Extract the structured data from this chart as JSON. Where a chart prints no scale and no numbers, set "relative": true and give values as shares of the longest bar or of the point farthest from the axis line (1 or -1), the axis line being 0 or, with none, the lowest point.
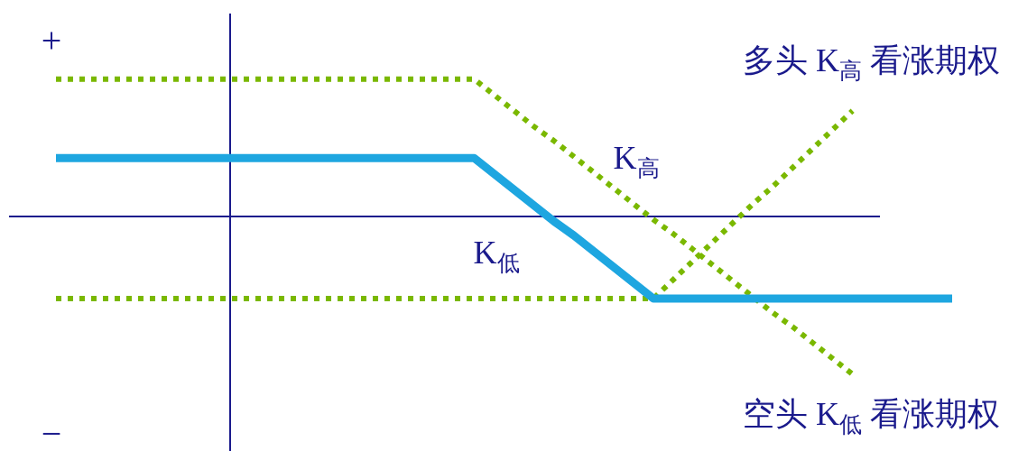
{
  "chart_data": {
    "type": "line",
    "relative": true,
    "categories": [
      null,
      null,
      null,
      null,
      null,
      null,
      null,
      null,
      null,
      null,
      null,
      null,
      null,
      null,
      null,
      null,
      null,
      null,
      null,
      null,
      null,
      null,
      null,
      null,
      null,
      null,
      null,
      null,
      null,
      null,
      null,
      null,
      null,
      null,
      null,
      null,
      null,
      null,
      null,
      null,
      null,
      null,
      null,
      null,
      null,
      null
    ],
    "series": [
      {
        "name": "空头 K$_{低}$ 看涨期权",
        "color": "#7ab800",
        "line_style": "dotted",
        "values": [
          0.87,
          0.87,
          0.87,
          0.87,
          0.87,
          0.87,
          0.87,
          0.87,
          0.87,
          0.87,
          0.87,
          0.87,
          0.87,
          0.87,
          0.87,
          0.87,
          0.87,
          0.87,
          0.87,
          0.87,
          0.87,
          0.87,
          0.77,
          0.67,
          0.57,
          0.48,
          0.38,
          0.28,
          0.18,
          0.08,
          -0.02,
          -0.11,
          -0.21,
          -0.31,
          -0.41,
          -0.51,
          -0.61,
          -0.7,
          -0.8,
          -0.9,
          -1,
          null,
          null,
          null,
          null,
          null
        ]
      },
      {
        "name": "多头 K$_{高}$ 看涨期权",
        "color": "#7ab800",
        "line_style": "dotted",
        "values": [
          -0.52,
          -0.52,
          -0.52,
          -0.52,
          -0.52,
          -0.52,
          -0.52,
          -0.52,
          -0.52,
          -0.52,
          -0.52,
          -0.52,
          -0.52,
          -0.52,
          -0.52,
          -0.52,
          -0.52,
          -0.52,
          -0.52,
          -0.52,
          -0.52,
          -0.52,
          -0.52,
          -0.52,
          -0.52,
          -0.52,
          -0.52,
          -0.52,
          -0.52,
          -0.52,
          -0.52,
          -0.4,
          -0.28,
          -0.16,
          -0.04,
          0.08,
          0.19,
          0.31,
          0.43,
          0.55,
          0.67,
          null,
          null,
          null,
          null,
          null
        ]
      },
      {
        "color": "#1ea6e0",
        "line_style": "solid",
        "values": [
          0.37,
          0.37,
          0.37,
          0.37,
          0.37,
          0.37,
          0.37,
          0.37,
          0.37,
          0.37,
          0.37,
          0.37,
          0.37,
          0.37,
          0.37,
          0.37,
          0.37,
          0.37,
          0.37,
          0.37,
          0.37,
          0.37,
          0.27,
          0.17,
          0.07,
          -0.03,
          -0.12,
          -0.22,
          -0.32,
          -0.42,
          -0.52,
          -0.52,
          -0.52,
          -0.52,
          -0.52,
          -0.52,
          -0.52,
          -0.52,
          -0.52,
          -0.52,
          -0.52,
          -0.52,
          -0.52,
          -0.52,
          -0.52,
          -0.52
        ]
      }
    ],
    "ref_lines": [
      {
        "axis": "y",
        "value": 0,
        "color": "#1a1a8c",
        "line_style": "solid"
      }
    ],
    "annotations": [
      "K$_{高}$",
      "K$_{低}$",
      "+",
      "−"
    ]
  }
}
